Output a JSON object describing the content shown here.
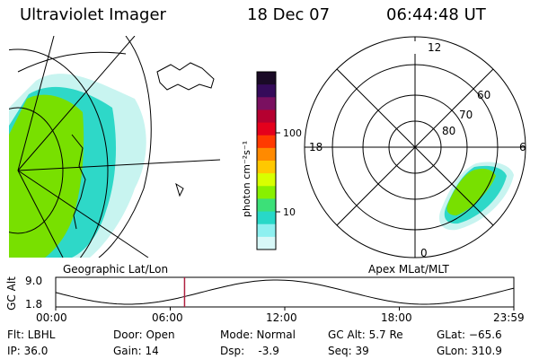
{
  "header": {
    "instrument": "Ultraviolet Imager",
    "date": "18 Dec 07",
    "time": "06:44:48 UT"
  },
  "colorbar": {
    "unit_label": "photon cm⁻²s⁻¹",
    "tick_100": "100",
    "tick_10": "10",
    "colors": [
      "#1a0a26",
      "#350b5a",
      "#7a1060",
      "#b50030",
      "#e4001c",
      "#ff3a00",
      "#ff8a00",
      "#ffc800",
      "#d8ff00",
      "#88f000",
      "#3ce078",
      "#28d8c8",
      "#8ef0f0",
      "#d8f8f8"
    ]
  },
  "geo_panel": {
    "label": "Geographic Lat/Lon"
  },
  "polar_panel": {
    "label": "Apex MLat/MLT",
    "mlt_12": "12",
    "mlt_18": "18",
    "mlt_6": "6",
    "mlt_0": "0",
    "lat_60": "60",
    "lat_70": "70",
    "lat_80": "80"
  },
  "gc_alt_plot": {
    "ylabel": "GC Alt",
    "y_max": "9.0",
    "y_min": "1.8",
    "x_ticks": [
      "00:00",
      "06:00",
      "12:00",
      "18:00",
      "23:59"
    ],
    "current_time_hours": 6.75
  },
  "status": {
    "flt": "Flt: LBHL",
    "ip": "IP: 36.0",
    "door": "Door: Open",
    "gain": "Gain: 14",
    "mode": "Mode: Normal",
    "dsp": "Dsp:    -3.9",
    "gc_alt": "GC Alt: 5.7 Re",
    "seq": "Seq: 39",
    "glat": "GLat: −65.6",
    "glon": "GLon: 310.9"
  },
  "colors": {
    "green": "#6ee000",
    "cyan": "#2ed8c8",
    "lightcyan": "#c8f4f0",
    "marker": "#b02040"
  }
}
